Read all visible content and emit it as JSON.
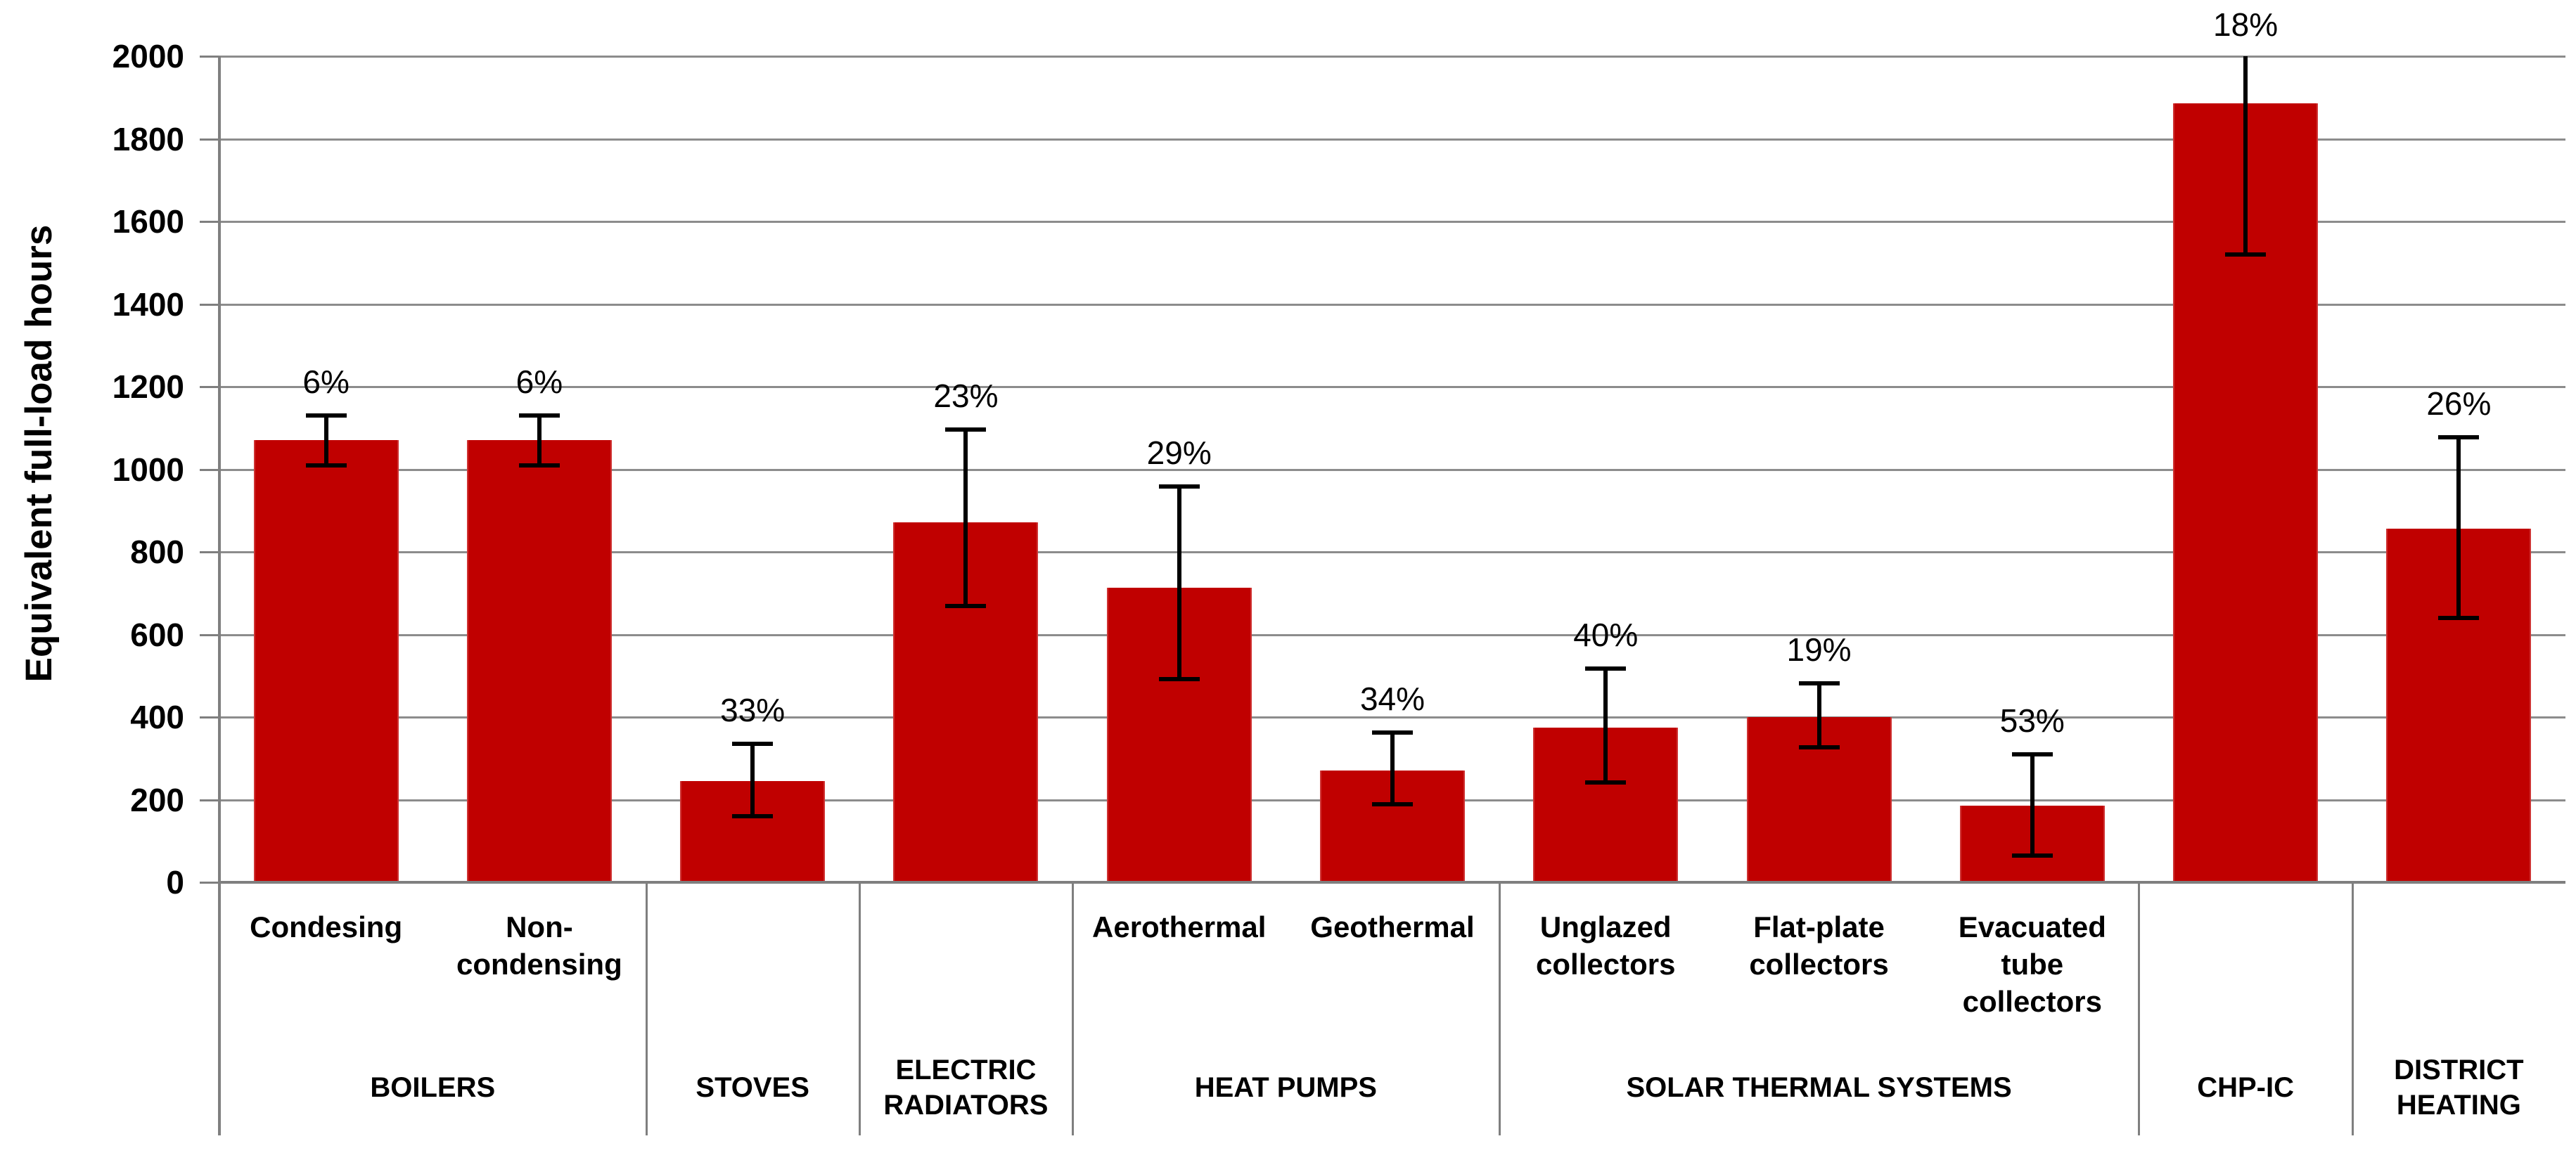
{
  "chart_data": {
    "type": "bar",
    "title": "",
    "xlabel": "",
    "ylabel": "Equivalent full-load hours",
    "ylim": [
      0,
      2000
    ],
    "ytick_step": 200,
    "grid": true,
    "legend": "none",
    "bar_color": "#C00000",
    "error_bar_color": "#000000",
    "categories": [
      "Condesing",
      "Non-condensing",
      "",
      "",
      "Aerothermal",
      "Geothermal",
      "Unglazed collectors",
      "Flat-plate collectors",
      "Evacuated tube collectors",
      "",
      ""
    ],
    "series": [
      {
        "name": "Equivalent full-load hours",
        "values": [
          1070,
          1070,
          245,
          872,
          714,
          270,
          374,
          400,
          185,
          1886,
          857
        ]
      }
    ],
    "errors": {
      "low": [
        1005,
        1005,
        155,
        663,
        486,
        184,
        236,
        321,
        60,
        1515,
        635
      ],
      "high": [
        1135,
        1135,
        340,
        1101,
        963,
        367,
        523,
        486,
        315,
        2000,
        1083
      ]
    },
    "percent_labels": [
      "6%",
      "6%",
      "33%",
      "23%",
      "29%",
      "34%",
      "40%",
      "19%",
      "53%",
      "18%",
      "26%"
    ],
    "groups": [
      {
        "label": "BOILERS",
        "bars": 2
      },
      {
        "label": "STOVES",
        "bars": 1
      },
      {
        "label": "ELECTRIC RADIATORS",
        "bars": 1
      },
      {
        "label": "HEAT PUMPS",
        "bars": 2
      },
      {
        "label": "SOLAR THERMAL SYSTEMS",
        "bars": 3
      },
      {
        "label": "CHP-IC",
        "bars": 1
      },
      {
        "label": "DISTRICT HEATING",
        "bars": 1
      }
    ]
  }
}
